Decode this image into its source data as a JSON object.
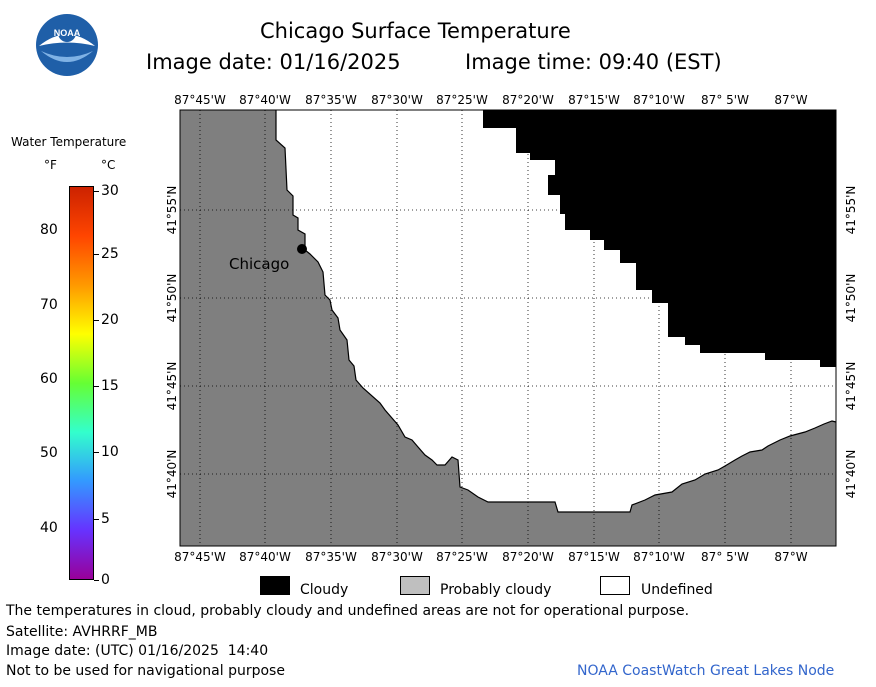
{
  "header": {
    "title": "Chicago Surface Temperature",
    "image_date": "Image date: 01/16/2025",
    "image_time": "Image time: 09:40 (EST)"
  },
  "logo": {
    "text": "NOAA"
  },
  "colorbar": {
    "title": "Water Temperature",
    "unit_f": "°F",
    "unit_c": "°C",
    "f_ticks": [
      "80",
      "70",
      "60",
      "50",
      "40"
    ],
    "c_ticks": [
      "30",
      "25",
      "20",
      "15",
      "10",
      "5",
      "0"
    ],
    "colors": [
      "#ff4500",
      "#ff9900",
      "#ffff00",
      "#66ff33",
      "#33ffcc",
      "#3399ff",
      "#6633ff",
      "#990099"
    ],
    "top_color": "#cc2200"
  },
  "map": {
    "lon_labels": [
      "87°45'W",
      "87°40'W",
      "87°35'W",
      "87°30'W",
      "87°25'W",
      "87°20'W",
      "87°15'W",
      "87°10'W",
      "87° 5'W",
      "87°W"
    ],
    "lat_labels": [
      "41°55'N",
      "41°50'N",
      "41°45'N",
      "41°40'N"
    ],
    "city_label": "Chicago",
    "land_color": "#7f7f7f",
    "cloud_color": "#000000",
    "undefined_color": "#ffffff"
  },
  "legend": {
    "cloudy": "Cloudy",
    "probably_cloudy": "Probably cloudy",
    "undefined": "Undefined",
    "cloudy_color": "#000000",
    "probably_cloudy_color": "#bfbfbf",
    "undefined_color": "#ffffff"
  },
  "footer": {
    "disclaimer": "The temperatures in cloud, probably cloudy and undefined areas are not for operational purpose.",
    "satellite": "Satellite: AVHRRF_MB",
    "utc_date": "Image date: (UTC) 01/16/2025  14:40",
    "nav_warning": "Not to be used for navigational purpose",
    "credit": "NOAA CoastWatch Great Lakes Node",
    "credit_color": "#3366cc"
  }
}
